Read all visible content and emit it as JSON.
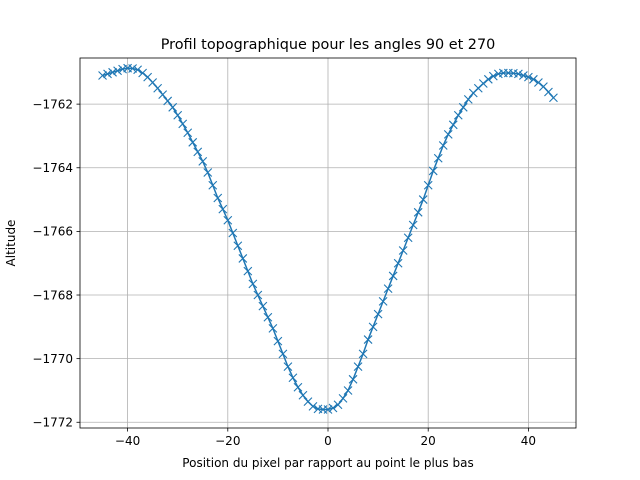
{
  "chart_data": {
    "type": "line",
    "title": "Profil topographique pour les angles 90 et 270",
    "xlabel": "Position du pixel par rapport au point le plus bas",
    "ylabel": "Altitude",
    "xlim": [
      -49.5,
      49.5
    ],
    "ylim": [
      -1772.18,
      -1760.55
    ],
    "grid": true,
    "marker": "x",
    "color": "#1f77b4",
    "xticks": [
      -40,
      -20,
      0,
      20,
      40
    ],
    "xtick_labels": [
      "−40",
      "−20",
      "0",
      "20",
      "40"
    ],
    "yticks": [
      -1772,
      -1770,
      -1768,
      -1766,
      -1764,
      -1762
    ],
    "ytick_labels": [
      "−1772",
      "−1770",
      "−1768",
      "−1766",
      "−1764",
      "−1762"
    ],
    "series": [
      {
        "x": [
          -45,
          -44,
          -43,
          -42,
          -41,
          -40,
          -39,
          -38,
          -37,
          -36,
          -35,
          -34,
          -33,
          -32,
          -31,
          -30,
          -29,
          -28,
          -27,
          -26,
          -25,
          -24,
          -23,
          -22,
          -21,
          -20,
          -19,
          -18,
          -17,
          -16,
          -15,
          -14,
          -13,
          -12,
          -11,
          -10,
          -9,
          -8,
          -7,
          -6,
          -5,
          -4,
          -3,
          -2,
          -1,
          0,
          1,
          2,
          3,
          4,
          5,
          6,
          7,
          8,
          9,
          10,
          11,
          12,
          13,
          14,
          15,
          16,
          17,
          18,
          19,
          20,
          21,
          22,
          23,
          24,
          25,
          26,
          27,
          28,
          29,
          30,
          31,
          32,
          33,
          34,
          35,
          36,
          37,
          38,
          39,
          40,
          41,
          42,
          43,
          44,
          45
        ],
        "y": [
          -1761.1,
          -1761.05,
          -1761.0,
          -1760.95,
          -1760.9,
          -1760.87,
          -1760.88,
          -1760.92,
          -1761.02,
          -1761.15,
          -1761.32,
          -1761.5,
          -1761.7,
          -1761.9,
          -1762.1,
          -1762.35,
          -1762.62,
          -1762.9,
          -1763.2,
          -1763.5,
          -1763.8,
          -1764.15,
          -1764.55,
          -1764.95,
          -1765.3,
          -1765.65,
          -1766.05,
          -1766.45,
          -1766.85,
          -1767.25,
          -1767.65,
          -1768.0,
          -1768.35,
          -1768.7,
          -1769.05,
          -1769.45,
          -1769.85,
          -1770.25,
          -1770.6,
          -1770.9,
          -1771.15,
          -1771.35,
          -1771.5,
          -1771.58,
          -1771.6,
          -1771.6,
          -1771.55,
          -1771.45,
          -1771.25,
          -1771.0,
          -1770.65,
          -1770.25,
          -1769.85,
          -1769.4,
          -1769.0,
          -1768.6,
          -1768.2,
          -1767.8,
          -1767.4,
          -1767.0,
          -1766.6,
          -1766.2,
          -1765.8,
          -1765.4,
          -1765.0,
          -1764.55,
          -1764.1,
          -1763.7,
          -1763.3,
          -1762.95,
          -1762.65,
          -1762.35,
          -1762.1,
          -1761.85,
          -1761.65,
          -1761.5,
          -1761.35,
          -1761.22,
          -1761.12,
          -1761.05,
          -1761.02,
          -1761.02,
          -1761.03,
          -1761.05,
          -1761.1,
          -1761.15,
          -1761.22,
          -1761.32,
          -1761.45,
          -1761.62,
          -1761.8
        ]
      }
    ]
  }
}
